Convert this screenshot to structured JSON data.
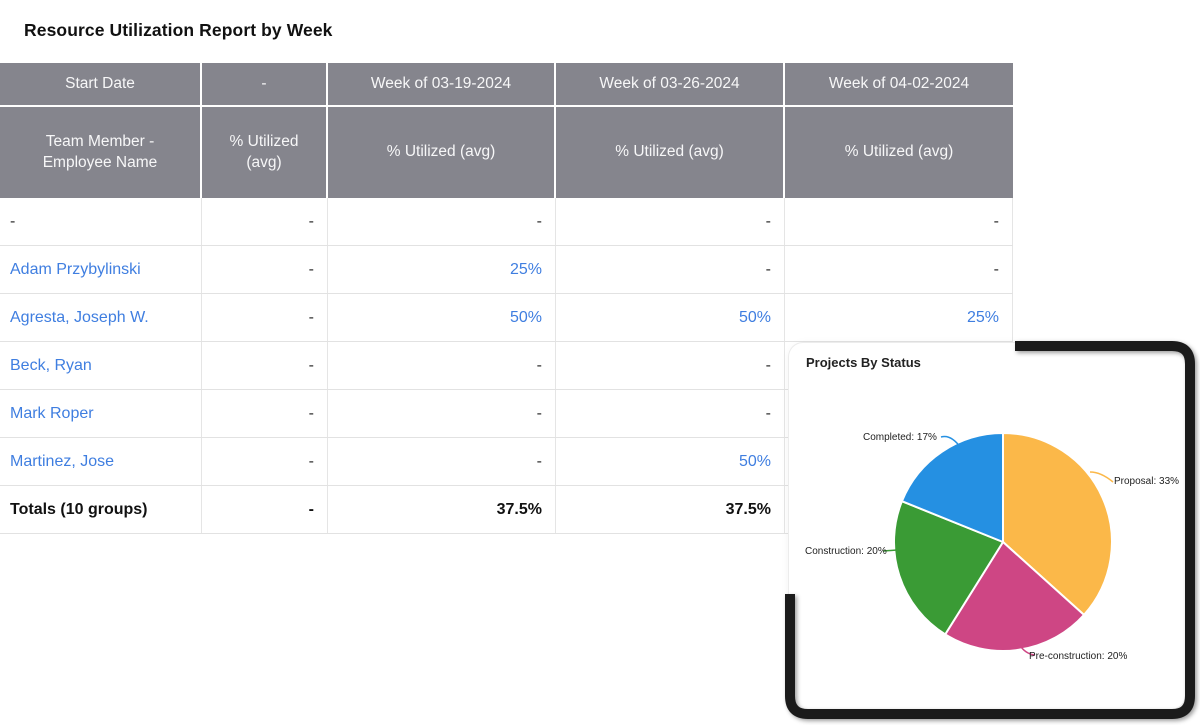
{
  "page": {
    "title": "Resource Utilization Report by Week"
  },
  "table": {
    "header_row1": [
      "Start Date",
      "-",
      "Week of 03-19-2024",
      "Week of 03-26-2024",
      "Week of 04-02-2024"
    ],
    "header_row2": [
      "Team Member - Employee Name",
      "% Utilized (avg)",
      "% Utilized (avg)",
      "% Utilized (avg)",
      "% Utilized (avg)"
    ],
    "rows": [
      {
        "name": "-",
        "link": false,
        "bold": false,
        "values": [
          "-",
          "-",
          "-",
          "-"
        ]
      },
      {
        "name": "Adam Przybylinski",
        "link": true,
        "bold": false,
        "values": [
          "-",
          "25%",
          "-",
          "-"
        ]
      },
      {
        "name": "Agresta, Joseph W.",
        "link": true,
        "bold": false,
        "values": [
          "-",
          "50%",
          "50%",
          "25%"
        ]
      },
      {
        "name": "Beck, Ryan",
        "link": true,
        "bold": false,
        "values": [
          "-",
          "-",
          "-",
          ""
        ]
      },
      {
        "name": "Mark Roper",
        "link": true,
        "bold": false,
        "values": [
          "-",
          "-",
          "-",
          ""
        ]
      },
      {
        "name": "Martinez, Jose",
        "link": true,
        "bold": false,
        "values": [
          "-",
          "-",
          "50%",
          ""
        ]
      },
      {
        "name": "Totals (10 groups)",
        "link": false,
        "bold": true,
        "values": [
          "-",
          "37.5%",
          "37.5%",
          ""
        ]
      }
    ]
  },
  "chart_card": {
    "title": "Projects By Status"
  },
  "chart_data": {
    "type": "pie",
    "title": "Projects By Status",
    "categories": [
      "Proposal",
      "Pre-construction",
      "Construction",
      "Completed"
    ],
    "values": [
      33,
      20,
      20,
      17
    ],
    "unit": "%",
    "colors": [
      "#FBB849",
      "#CE4684",
      "#3A9B35",
      "#2590E2"
    ],
    "labels": [
      "Proposal: 33%",
      "Pre-construction: 20%",
      "Construction: 20%",
      "Completed: 17%"
    ],
    "start_angle_deg": 0,
    "direction": "clockwise",
    "legend": "none"
  }
}
